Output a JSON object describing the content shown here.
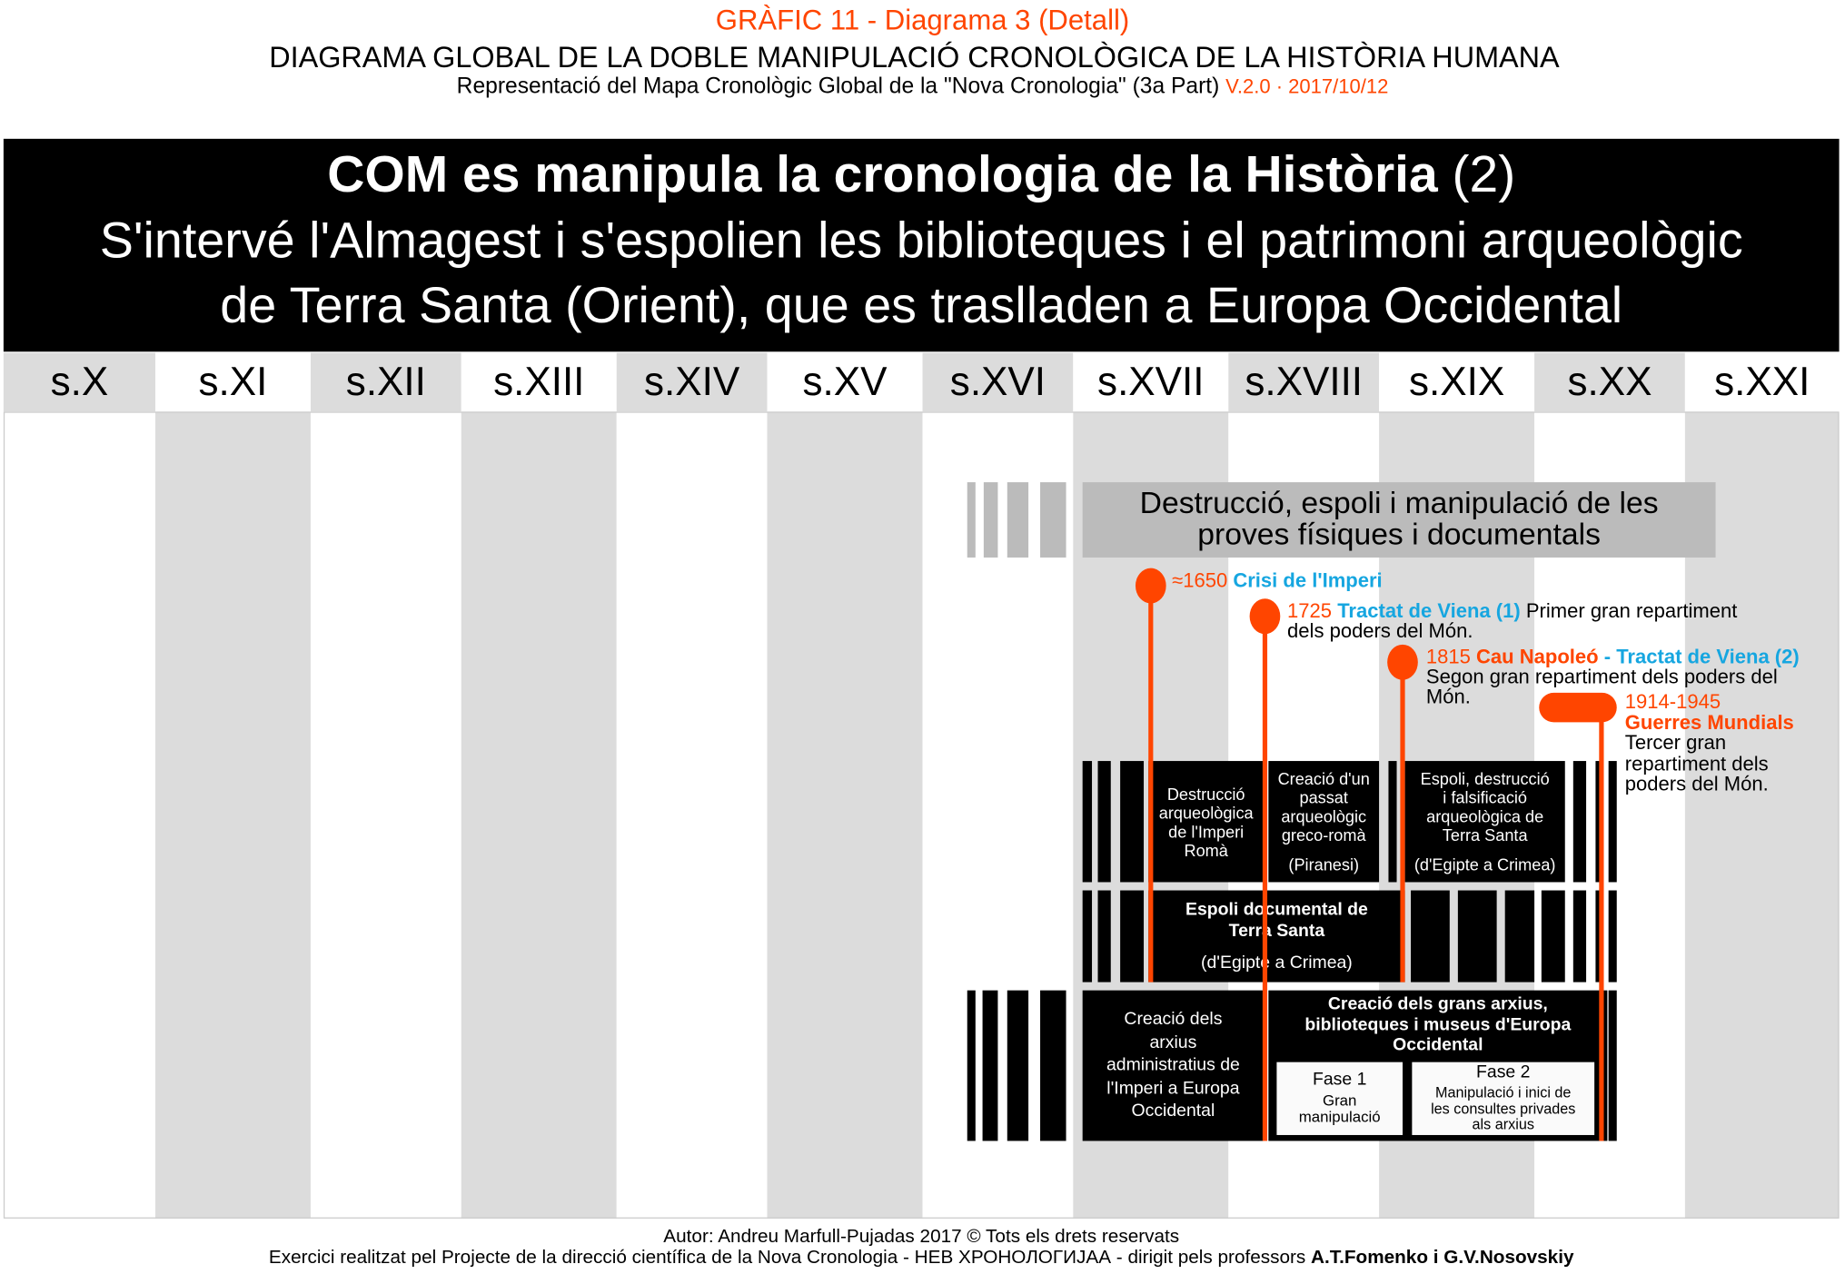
{
  "header": {
    "graphic": "GRÀFIC 11 - Diagrama 3 (Detall)",
    "title": "DIAGRAMA GLOBAL DE LA DOBLE MANIPULACIÓ CRONOLÒGICA DE LA HISTÒRIA HUMANA",
    "subtitle": "Representació del Mapa Cronològic Global de la \"Nova Cronologia\" (3a Part)",
    "version": "V.2.0  ·  2017/10/12"
  },
  "banner": {
    "line1_bold": "COM es manipula la cronologia de la Història",
    "line1_num": " (2)",
    "line2": "S'intervé l'Almagest i s'espolien les biblioteques i el patrimoni arqueològic",
    "line3": "de Terra Santa (Orient), que es traslladen a Europa Occidental"
  },
  "centuries": [
    "s.X",
    "s.XI",
    "s.XII",
    "s.XIII",
    "s.XIV",
    "s.XV",
    "s.XVI",
    "s.XVII",
    "s.XVIII",
    "s.XIX",
    "s.XX",
    "s.XXI"
  ],
  "gray_box": {
    "line1": "Destrucció, espoli i manipulació de les",
    "line2": "proves físiques i documentals"
  },
  "events": [
    {
      "year": "≈1650",
      "title": "Crisi de l'Imperi"
    },
    {
      "year": "1725",
      "title": "Tractat de Viena (1)",
      "desc1": "Primer gran repartiment",
      "desc2": "dels poders del Món."
    },
    {
      "year": "1815",
      "title_orange": "Cau Napoleó",
      "sep": " - ",
      "title": "Tractat de Viena (2)",
      "desc1": "Segon gran repartiment dels poders del",
      "desc2": "Món."
    },
    {
      "year": "1914-1945",
      "title": "Guerres Mundials",
      "desc": [
        "Tercer gran",
        "repartiment dels",
        "poders del Món."
      ]
    }
  ],
  "blocks": {
    "destruccio": [
      "Destrucció",
      "arqueològica",
      "de l'Imperi",
      "Romà"
    ],
    "creacio_passat": [
      "Creació d'un",
      "passat",
      "arqueològic",
      "greco-romà"
    ],
    "creacio_passat_note": "(Piranesi)",
    "espoli_terra": [
      "Espoli, destrucció",
      "i falsificació",
      "arqueològica de",
      "Terra Santa"
    ],
    "espoli_terra_note": "(d'Egipte a Crimea)",
    "espoli_doc": [
      "Espoli documental de",
      "Terra Santa"
    ],
    "espoli_doc_note": "(d'Egipte a Crimea)",
    "arxius_admin": [
      "Creació dels",
      "arxius",
      "administratius de",
      "l'Imperi a Europa",
      "Occidental"
    ],
    "grans_arxius": [
      "Creació dels grans arxius,",
      "biblioteques i museus d'Europa",
      "Occidental"
    ],
    "fase1": {
      "title": "Fase 1",
      "desc": [
        "Gran",
        "manipulació"
      ]
    },
    "fase2": {
      "title": "Fase 2",
      "desc": [
        "Manipulació i inici de",
        "les consultes privades",
        "als arxius"
      ]
    }
  },
  "footer": {
    "author": "Autor: Andreu Marfull-Pujadas 2017 © Tots els drets reservats",
    "credit": "Exercici realitzat pel Projecte de la direcció científica de la Nova Cronologia - НЕВ ХРОНОЛОГИЈАА - dirigit pels professors ",
    "professors": "A.T.Fomenko i G.V.Nosovskiy"
  },
  "colors": {
    "accent": "#ff4500",
    "blue": "#16a6e0",
    "gray": "#dcdcdc"
  }
}
